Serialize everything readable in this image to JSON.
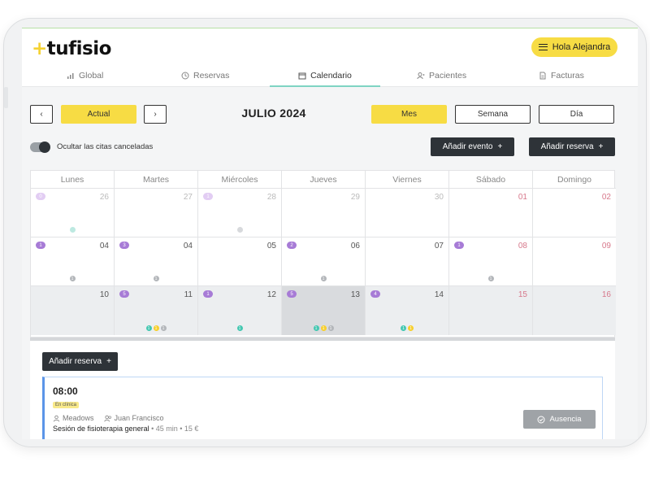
{
  "brand": {
    "logo": "tufisio"
  },
  "header": {
    "greeting": "Hola Alejandra"
  },
  "tabs": [
    {
      "label": "Global",
      "icon": "bar-chart-icon"
    },
    {
      "label": "Reservas",
      "icon": "clock-icon"
    },
    {
      "label": "Calendario",
      "icon": "calendar-icon",
      "active": true
    },
    {
      "label": "Pacientes",
      "icon": "patients-icon"
    },
    {
      "label": "Facturas",
      "icon": "invoice-icon"
    }
  ],
  "toolbar": {
    "prev": "‹",
    "today": "Actual",
    "next": "›",
    "title": "JULIO 2024",
    "views": {
      "month": "Mes",
      "week": "Semana",
      "day": "Día"
    },
    "active_view": "Mes",
    "toggle_label": "Ocultar las citas canceladas",
    "toggle_on": true,
    "add_event": "Añadir evento",
    "add_booking": "Añadir reserva"
  },
  "calendar": {
    "weekdays": [
      "Lunes",
      "Martes",
      "Miércoles",
      "Jueves",
      "Viernes",
      "Sábado",
      "Domingo"
    ],
    "weeks": [
      [
        {
          "day": "26",
          "muted": true,
          "badge": "0",
          "badge_light": true,
          "dots": [
            {
              "c": "teal-light",
              "t": ""
            }
          ]
        },
        {
          "day": "27",
          "muted": true
        },
        {
          "day": "28",
          "muted": true,
          "badge": "1",
          "badge_light": true,
          "dots": [
            {
              "c": "gray-light",
              "t": ""
            }
          ]
        },
        {
          "day": "29",
          "muted": true
        },
        {
          "day": "30",
          "muted": true
        },
        {
          "day": "01",
          "weekend": true
        },
        {
          "day": "02",
          "weekend": true
        }
      ],
      [
        {
          "day": "04",
          "badge": "1",
          "dots": [
            {
              "c": "gray",
              "t": "1"
            }
          ]
        },
        {
          "day": "04",
          "badge": "3",
          "dots": [
            {
              "c": "gray",
              "t": "1"
            }
          ]
        },
        {
          "day": "05"
        },
        {
          "day": "06",
          "badge": "2",
          "dots": [
            {
              "c": "gray",
              "t": "1"
            }
          ]
        },
        {
          "day": "07"
        },
        {
          "day": "08",
          "weekend": true,
          "badge": "1",
          "dots": [
            {
              "c": "gray",
              "t": "1"
            }
          ]
        },
        {
          "day": "09",
          "weekend": true
        }
      ],
      [
        {
          "day": "10",
          "gray": true
        },
        {
          "day": "11",
          "gray": true,
          "badge": "5",
          "dots": [
            {
              "c": "teal",
              "t": "1"
            },
            {
              "c": "yellow",
              "t": "1"
            },
            {
              "c": "gray",
              "t": "1"
            }
          ]
        },
        {
          "day": "12",
          "gray": true,
          "badge": "1",
          "dots": [
            {
              "c": "teal",
              "t": "1"
            }
          ]
        },
        {
          "day": "13",
          "today": true,
          "badge": "5",
          "dots": [
            {
              "c": "teal",
              "t": "1"
            },
            {
              "c": "yellow",
              "t": "1"
            },
            {
              "c": "gray",
              "t": "1"
            }
          ]
        },
        {
          "day": "14",
          "gray": true,
          "badge": "4",
          "dots": [
            {
              "c": "teal",
              "t": "1"
            },
            {
              "c": "yellow",
              "t": "1"
            }
          ]
        },
        {
          "day": "15",
          "gray": true,
          "weekend": true
        },
        {
          "day": "16",
          "gray": true,
          "weekend": true
        }
      ]
    ]
  },
  "day_panel": {
    "add_booking": "Añadir reserva",
    "appointment": {
      "time": "08:00",
      "tag": "En clínica",
      "location": "Meadows",
      "professional": "Juan Francisco",
      "service": "Sesión de fisioterapia general",
      "details": "• 45 min • 15 €",
      "absence_button": "Ausencia"
    }
  }
}
